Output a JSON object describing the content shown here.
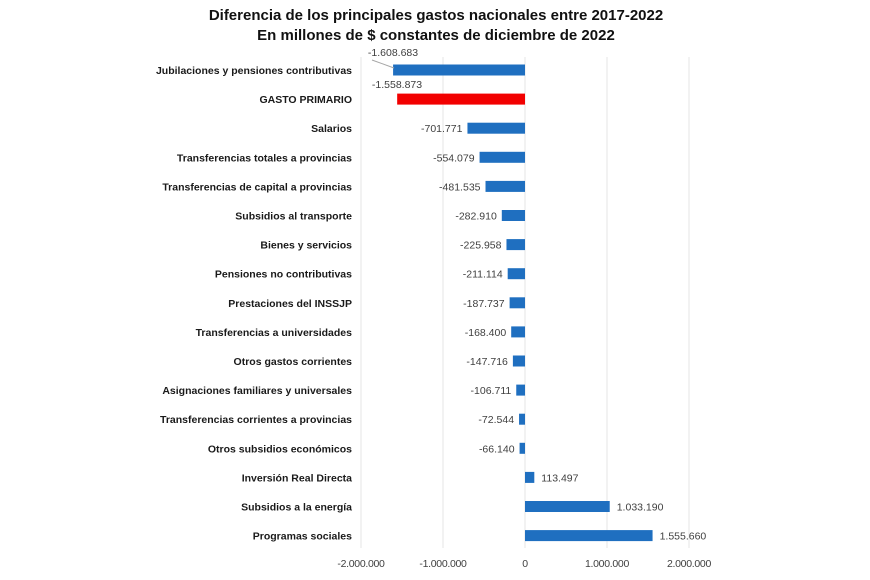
{
  "chart_data": {
    "type": "bar",
    "orientation": "horizontal",
    "title": "Diferencia de los principales gastos nacionales entre 2017-2022",
    "subtitle": "En millones de $ constantes de diciembre de 2022",
    "xlabel": "",
    "ylabel": "",
    "xlim": [
      -2000000,
      2000000
    ],
    "x_ticks": [
      -2000000,
      -1000000,
      0,
      1000000,
      2000000
    ],
    "x_tick_labels": [
      "-2.000.000",
      "-1.000.000",
      "0",
      "1.000.000",
      "2.000.000"
    ],
    "grid": "vertical",
    "legend": "none",
    "colors": {
      "default": "#1f6fc0",
      "highlight": "#f20000"
    },
    "categories": [
      "Jubilaciones y pensiones contributivas",
      "GASTO PRIMARIO",
      "Salarios",
      "Transferencias totales a provincias",
      "Transferencias de capital a provincias",
      "Subsidios al transporte",
      "Bienes y servicios",
      "Pensiones no contributivas",
      "Prestaciones del INSSJP",
      "Transferencias a universidades",
      "Otros gastos corrientes",
      "Asignaciones familiares y universales",
      "Transferencias corrientes a provincias",
      "Otros subsidios económicos",
      "Inversión Real Directa",
      "Subsidios a la energía",
      "Programas sociales"
    ],
    "values": [
      -1608683,
      -1558873,
      -701771,
      -554079,
      -481535,
      -282910,
      -225958,
      -211114,
      -187737,
      -168400,
      -147716,
      -106711,
      -72544,
      -66140,
      113497,
      1033190,
      1555660
    ],
    "value_labels": [
      "-1.608.683",
      "-1.558.873",
      "-701.771",
      "-554.079",
      "-481.535",
      "-282.910",
      "-225.958",
      "-211.114",
      "-187.737",
      "-168.400",
      "-147.716",
      "-106.711",
      "-72.544",
      "-66.140",
      "113.497",
      "1.033.190",
      "1.555.660"
    ],
    "highlighted": [
      "GASTO PRIMARIO"
    ]
  }
}
